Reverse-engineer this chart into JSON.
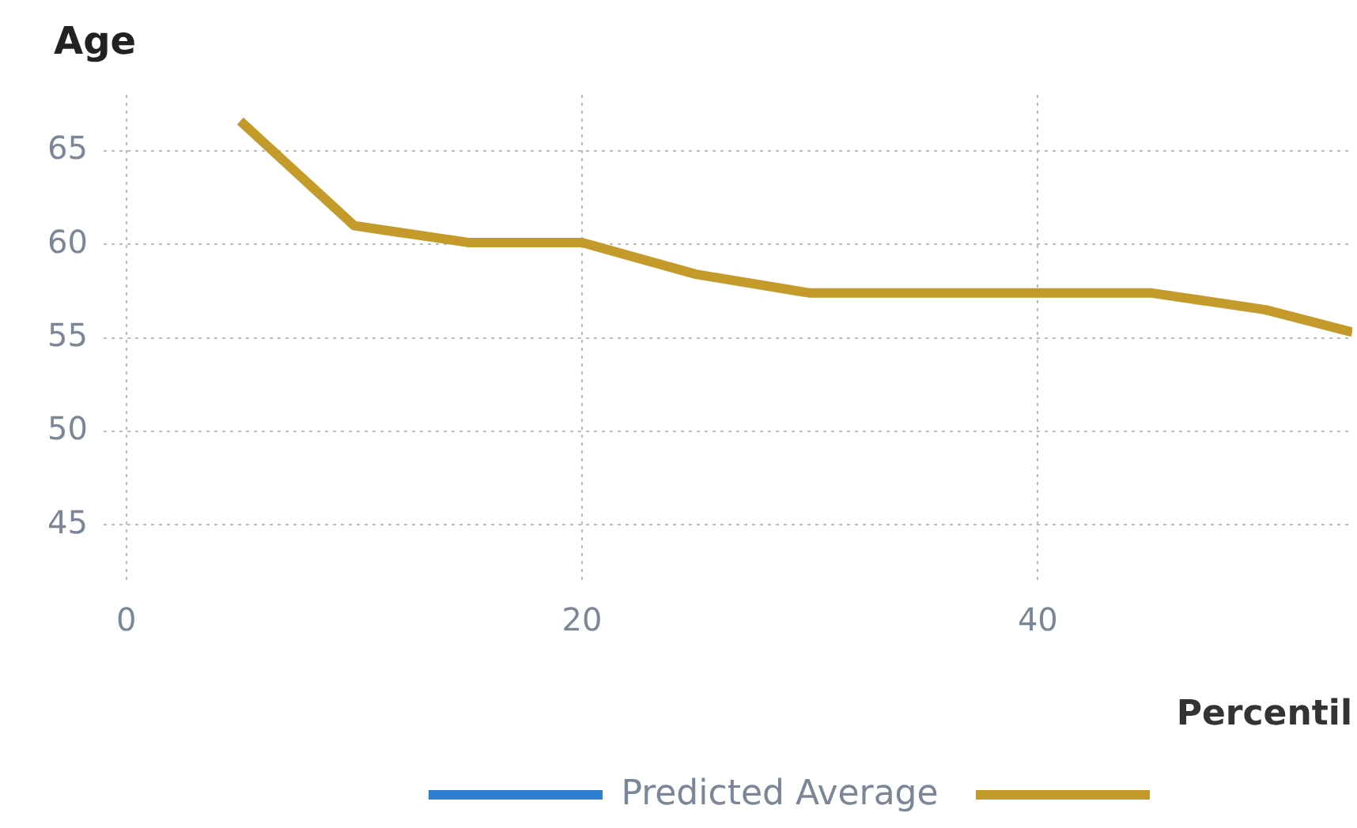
{
  "chart_data": {
    "type": "line",
    "ylabel": "Age",
    "xlabel": "Percentil",
    "x": [
      5,
      10,
      15,
      20,
      25,
      30,
      35,
      40,
      45,
      50,
      53.8
    ],
    "series": [
      {
        "name": "Predicted Average",
        "color": "#2f7fd0",
        "values": [
          null,
          null,
          null,
          null,
          null,
          null,
          null,
          null,
          null,
          null,
          null
        ]
      },
      {
        "color": "#c49a2a",
        "values": [
          66.6,
          61.0,
          60.1,
          60.1,
          58.4,
          57.4,
          57.4,
          57.4,
          57.4,
          56.5,
          55.3
        ]
      }
    ],
    "xlim": [
      -1,
      53.8
    ],
    "xticks": [
      0,
      20,
      40
    ],
    "ylim": [
      42,
      68
    ],
    "yticks": [
      45,
      50,
      55,
      60,
      65
    ],
    "grid": true,
    "legend": "bottom",
    "marker": "none",
    "line_style": "solid"
  }
}
